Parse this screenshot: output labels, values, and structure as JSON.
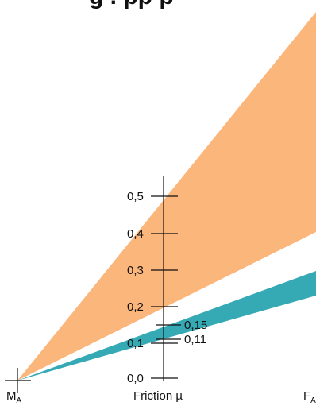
{
  "title": "g . pp p",
  "axis": {
    "origin_label": "M",
    "origin_subscript": "A",
    "end_label": "F",
    "end_subscript": "A",
    "center_label": "Friction µ",
    "tick_labels": [
      "0,0",
      "0,1",
      "0,2",
      "0,3",
      "0,4",
      "0,5"
    ],
    "marker_labels": [
      "0,11",
      "0,15"
    ]
  },
  "colors": {
    "orange_band": "#fbb67c",
    "teal_band": "#35aab5",
    "axis": "#111111"
  }
}
